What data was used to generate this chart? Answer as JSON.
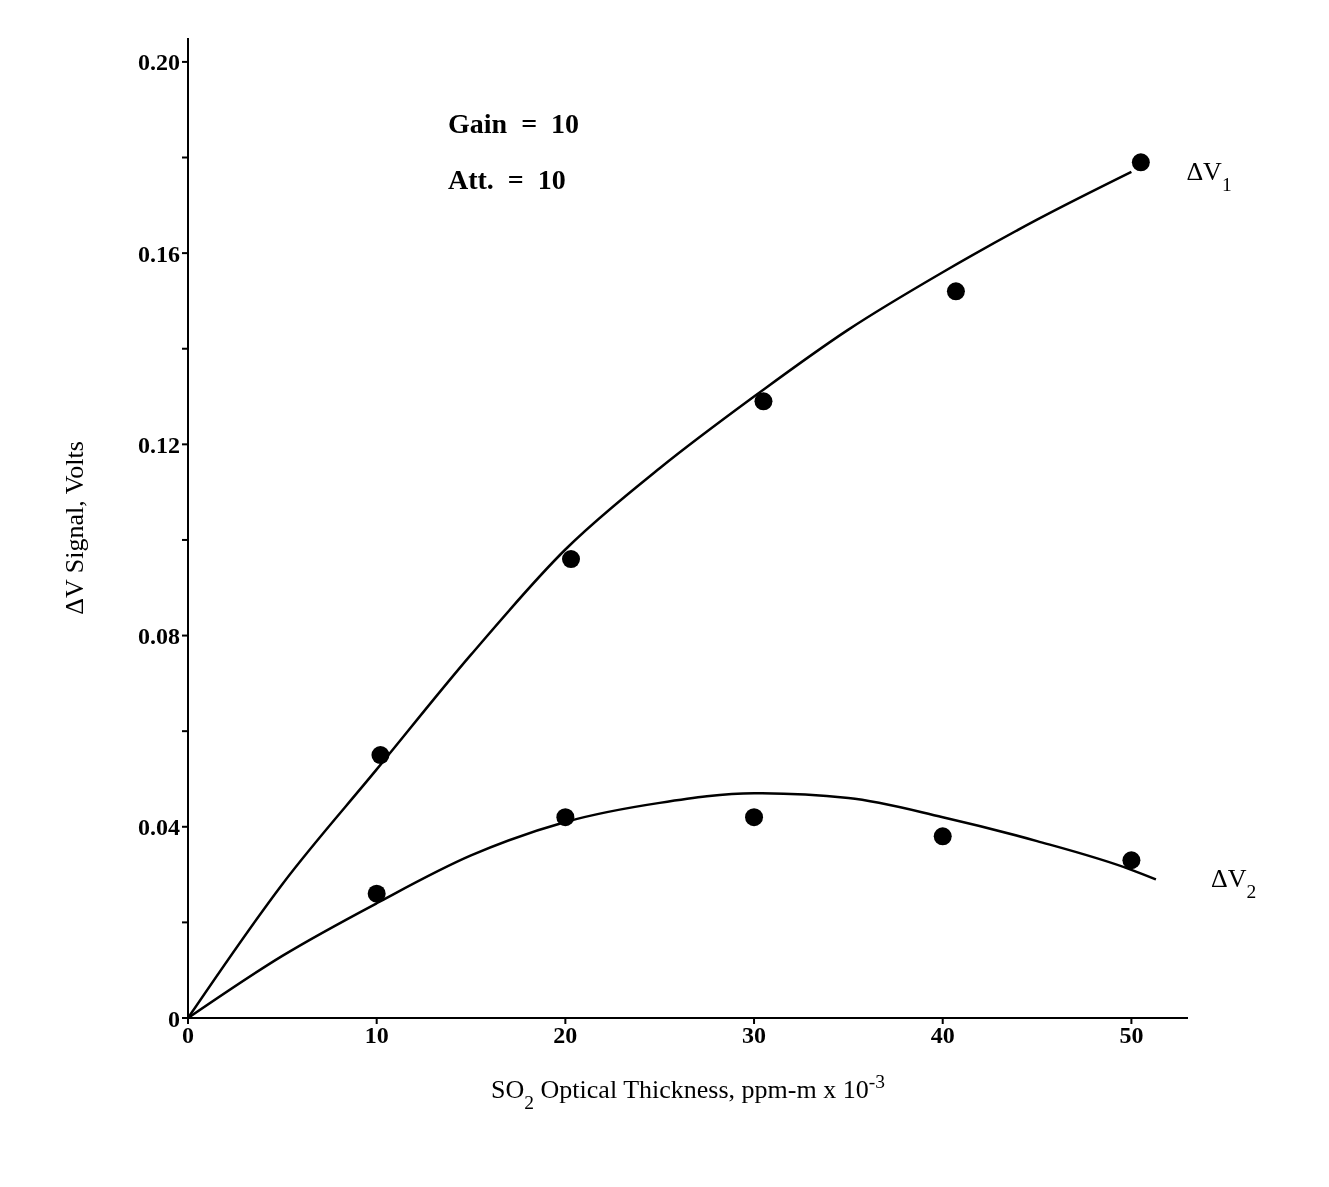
{
  "chart_data": {
    "type": "scatter",
    "xlabel": "SO$_{2}$ Optical Thickness, ppm-m x 10$^{-3}$",
    "ylabel": "ΔV Signal, Volts",
    "annotations": [
      "Gain  =  10",
      "Att.  =  10"
    ],
    "series": [
      {
        "marker": "circle",
        "color": "#000000",
        "x": [
          10.2,
          20.3,
          30.5,
          40.7,
          50.5
        ],
        "values": [
          0.055,
          0.096,
          0.129,
          0.152,
          0.179
        ]
      },
      {
        "marker": "circle",
        "color": "#000000",
        "x": [
          10,
          20,
          30,
          40,
          50
        ],
        "values": [
          0.026,
          0.042,
          0.042,
          0.038,
          0.033
        ]
      },
      {
        "type": "line",
        "marker": "none",
        "name": "ΔV$_{1}$",
        "color": "#000000",
        "x": [
          0,
          5,
          10,
          15,
          20,
          25,
          30,
          35,
          40,
          45,
          50
        ],
        "values": [
          0,
          0.028,
          0.052,
          0.076,
          0.098,
          0.115,
          0.13,
          0.144,
          0.156,
          0.167,
          0.177
        ]
      },
      {
        "type": "line",
        "marker": "none",
        "name": "ΔV$_{2}$",
        "color": "#000000",
        "x": [
          0,
          5,
          10,
          15,
          20,
          25,
          30,
          35,
          40,
          45,
          50,
          51.3
        ],
        "values": [
          0,
          0.013,
          0.024,
          0.034,
          0.041,
          0.045,
          0.047,
          0.046,
          0.042,
          0.037,
          0.031,
          0.029
        ]
      }
    ],
    "xlim": [
      0,
      53
    ],
    "xticks": [
      0,
      10,
      20,
      30,
      40,
      50
    ],
    "ylim": [
      0,
      0.205
    ],
    "yticks": [
      0,
      {
        "value": 0.02,
        "label": null
      },
      {
        "value": 0.04,
        "label": "0.04"
      },
      {
        "value": 0.06,
        "label": null
      },
      {
        "value": 0.08,
        "label": "0.08"
      },
      {
        "value": 0.1,
        "label": null
      },
      {
        "value": 0.12,
        "label": "0.12"
      },
      {
        "value": 0.14,
        "label": null
      },
      {
        "value": 0.16,
        "label": "0.16"
      },
      {
        "value": 0.18,
        "label": null
      },
      {
        "value": 0.2,
        "label": "0.20"
      }
    ],
    "grid": false,
    "legend": false,
    "line_style": "solid"
  }
}
